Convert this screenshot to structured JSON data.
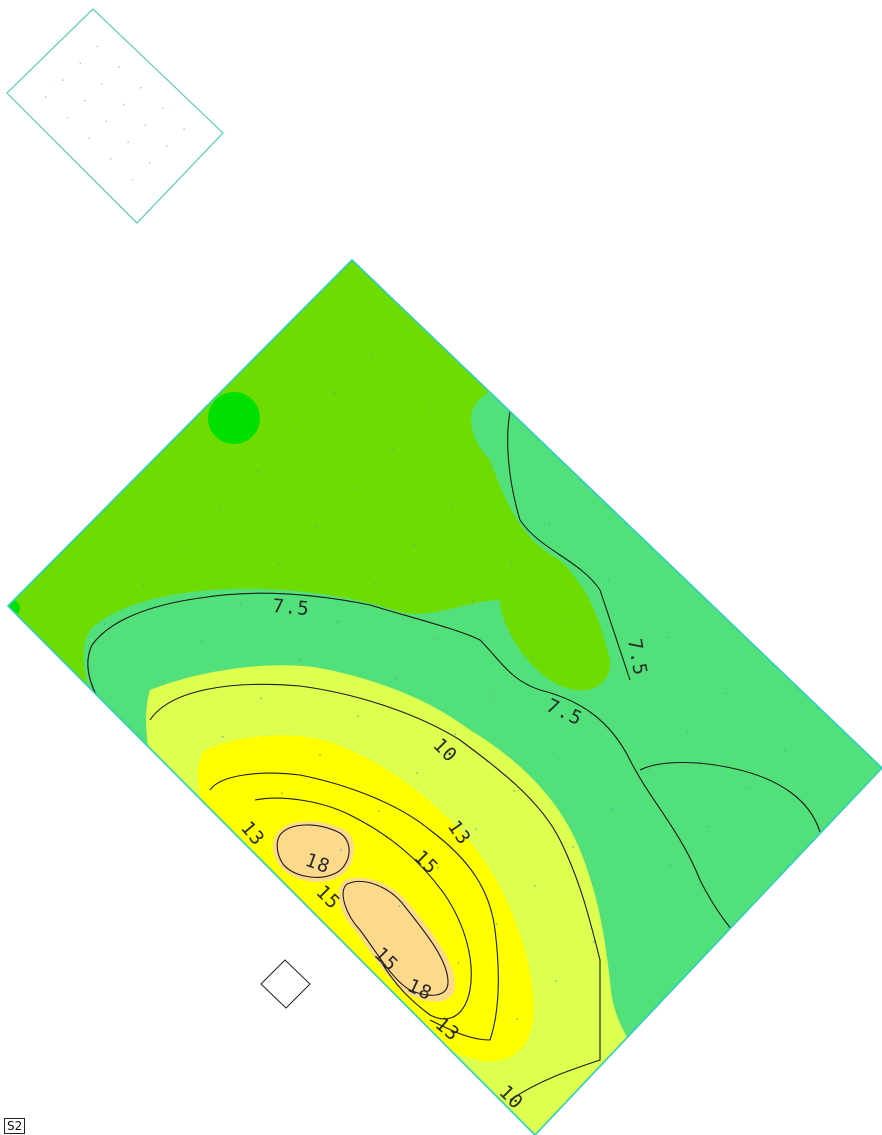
{
  "sheet_tag": "S2",
  "contour_labels": [
    {
      "id": "c75-a",
      "text": "7.5"
    },
    {
      "id": "c75-b",
      "text": "7.5"
    },
    {
      "id": "c75-c",
      "text": "7.5"
    },
    {
      "id": "c10-a",
      "text": "10"
    },
    {
      "id": "c10-b",
      "text": "10"
    },
    {
      "id": "c13-a",
      "text": "13"
    },
    {
      "id": "c13-b",
      "text": "13"
    },
    {
      "id": "c13-c",
      "text": "13"
    },
    {
      "id": "c15-a",
      "text": "15"
    },
    {
      "id": "c15-b",
      "text": "15"
    },
    {
      "id": "c15-c",
      "text": "15"
    },
    {
      "id": "c18-a",
      "text": "18"
    },
    {
      "id": "c18-b",
      "text": "18"
    }
  ],
  "colors": {
    "band_low": "#6fdc00",
    "band_75": "#52e07a",
    "band_10": "#dcff50",
    "band_13": "#ffff00",
    "band_18": "#fdd98c",
    "band_spot": "#00e000",
    "slab_edge": "#2ad0c0",
    "key_plan_edge": "#3cc8b4"
  }
}
